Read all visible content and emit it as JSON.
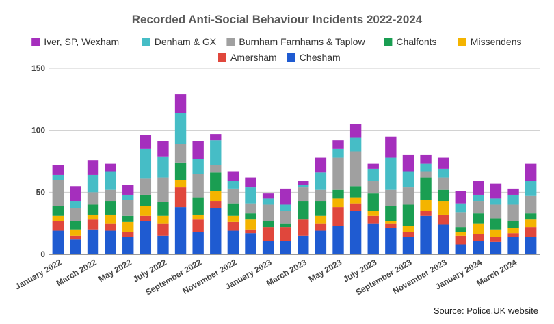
{
  "chart_data": {
    "type": "bar",
    "stacked": true,
    "title": "Recorded Anti-Social Behaviour Incidents 2022-2024",
    "source": "Source: Police.UK website",
    "xlabel": "",
    "ylabel": "",
    "ylim": [
      0,
      150
    ],
    "yticks": [
      0,
      50,
      100,
      150
    ],
    "grid": true,
    "legend": "top",
    "categories": [
      "January 2022",
      "February 2022",
      "March 2022",
      "April 2022",
      "May 2022",
      "June 2022",
      "July 2022",
      "August 2022",
      "September 2022",
      "October 2022",
      "November 2022",
      "December 2022",
      "January 2023",
      "February 2023",
      "March 2023",
      "April 2023",
      "May 2023",
      "June 2023",
      "July 2023",
      "August 2023",
      "September 2023",
      "October 2023",
      "November 2023",
      "December 2023",
      "January 2024",
      "February 2024",
      "March 2024",
      "April 2024"
    ],
    "shown_tick_labels": [
      "January 2022",
      "March 2022",
      "May 2022",
      "July 2022",
      "September 2022",
      "November 2022",
      "January 2023",
      "March 2023",
      "May 2023",
      "July 2023",
      "September 2023",
      "November 2023",
      "January 2024",
      "March 2024"
    ],
    "series": [
      {
        "name": "Chesham",
        "color": "#1f5bd1",
        "values": [
          19,
          12,
          20,
          19,
          14,
          27,
          15,
          38,
          18,
          37,
          19,
          17,
          11,
          11,
          15,
          19,
          23,
          35,
          25,
          21,
          14,
          31,
          24,
          8,
          11,
          10,
          14,
          14
        ]
      },
      {
        "name": "Amersham",
        "color": "#e0473c",
        "values": [
          8,
          3,
          8,
          6,
          4,
          4,
          10,
          16,
          10,
          6,
          7,
          3,
          11,
          11,
          13,
          6,
          15,
          6,
          6,
          4,
          4,
          4,
          8,
          7,
          5,
          4,
          3,
          8
        ]
      },
      {
        "name": "Missendens",
        "color": "#f4b400",
        "values": [
          4,
          5,
          4,
          7,
          8,
          8,
          6,
          6,
          4,
          8,
          5,
          8,
          0,
          0,
          0,
          6,
          7,
          5,
          4,
          2,
          5,
          9,
          11,
          3,
          9,
          6,
          4,
          6
        ]
      },
      {
        "name": "Chalfonts",
        "color": "#1a9e52",
        "values": [
          8,
          7,
          8,
          11,
          5,
          9,
          11,
          14,
          14,
          15,
          10,
          5,
          5,
          3,
          15,
          12,
          7,
          9,
          14,
          12,
          17,
          18,
          9,
          4,
          8,
          9,
          6,
          5
        ]
      },
      {
        "name": "Burnham Farnhams & Taplow",
        "color": "#a0a0a0",
        "values": [
          21,
          10,
          10,
          9,
          13,
          13,
          20,
          15,
          19,
          6,
          12,
          8,
          13,
          10,
          11,
          9,
          26,
          28,
          10,
          13,
          14,
          5,
          10,
          12,
          10,
          11,
          13,
          14
        ]
      },
      {
        "name": "Denham & GX",
        "color": "#46bdc6",
        "values": [
          4,
          6,
          14,
          15,
          4,
          24,
          17,
          25,
          12,
          20,
          6,
          13,
          5,
          5,
          2,
          14,
          7,
          11,
          10,
          26,
          13,
          6,
          7,
          7,
          5,
          5,
          8,
          12
        ]
      },
      {
        "name": "Iver, SP, Wexham",
        "color": "#a52fbd",
        "values": [
          8,
          12,
          12,
          6,
          8,
          11,
          12,
          15,
          14,
          5,
          8,
          8,
          4,
          13,
          3,
          12,
          7,
          11,
          4,
          17,
          13,
          7,
          9,
          10,
          11,
          12,
          5,
          14
        ]
      }
    ],
    "legend_rows": [
      [
        "Iver, SP, Wexham",
        "Denham & GX",
        "Burnham Farnhams & Taplow",
        "Chalfonts",
        "Missendens"
      ],
      [
        "Amersham",
        "Chesham"
      ]
    ]
  }
}
